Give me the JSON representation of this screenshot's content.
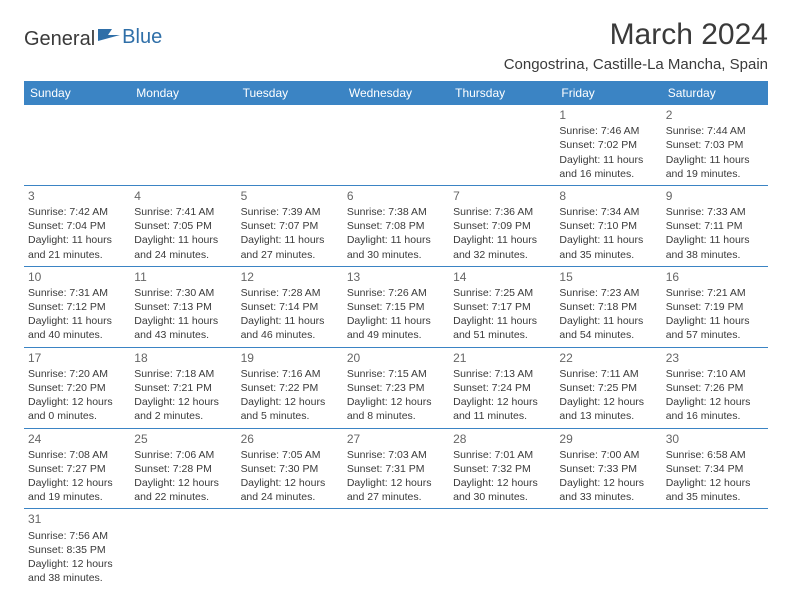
{
  "logo": {
    "text1": "General",
    "text2": "Blue"
  },
  "title": "March 2024",
  "location": "Congostrina, Castille-La Mancha, Spain",
  "colors": {
    "header_bg": "#3b84c4",
    "header_text": "#ffffff",
    "border": "#3b84c4",
    "text": "#3a3a3a",
    "daynum": "#666666",
    "logo_accent": "#2f6fa8"
  },
  "weekdays": [
    "Sunday",
    "Monday",
    "Tuesday",
    "Wednesday",
    "Thursday",
    "Friday",
    "Saturday"
  ],
  "weeks": [
    [
      null,
      null,
      null,
      null,
      null,
      {
        "n": "1",
        "sr": "Sunrise: 7:46 AM",
        "ss": "Sunset: 7:02 PM",
        "dl": "Daylight: 11 hours and 16 minutes."
      },
      {
        "n": "2",
        "sr": "Sunrise: 7:44 AM",
        "ss": "Sunset: 7:03 PM",
        "dl": "Daylight: 11 hours and 19 minutes."
      }
    ],
    [
      {
        "n": "3",
        "sr": "Sunrise: 7:42 AM",
        "ss": "Sunset: 7:04 PM",
        "dl": "Daylight: 11 hours and 21 minutes."
      },
      {
        "n": "4",
        "sr": "Sunrise: 7:41 AM",
        "ss": "Sunset: 7:05 PM",
        "dl": "Daylight: 11 hours and 24 minutes."
      },
      {
        "n": "5",
        "sr": "Sunrise: 7:39 AM",
        "ss": "Sunset: 7:07 PM",
        "dl": "Daylight: 11 hours and 27 minutes."
      },
      {
        "n": "6",
        "sr": "Sunrise: 7:38 AM",
        "ss": "Sunset: 7:08 PM",
        "dl": "Daylight: 11 hours and 30 minutes."
      },
      {
        "n": "7",
        "sr": "Sunrise: 7:36 AM",
        "ss": "Sunset: 7:09 PM",
        "dl": "Daylight: 11 hours and 32 minutes."
      },
      {
        "n": "8",
        "sr": "Sunrise: 7:34 AM",
        "ss": "Sunset: 7:10 PM",
        "dl": "Daylight: 11 hours and 35 minutes."
      },
      {
        "n": "9",
        "sr": "Sunrise: 7:33 AM",
        "ss": "Sunset: 7:11 PM",
        "dl": "Daylight: 11 hours and 38 minutes."
      }
    ],
    [
      {
        "n": "10",
        "sr": "Sunrise: 7:31 AM",
        "ss": "Sunset: 7:12 PM",
        "dl": "Daylight: 11 hours and 40 minutes."
      },
      {
        "n": "11",
        "sr": "Sunrise: 7:30 AM",
        "ss": "Sunset: 7:13 PM",
        "dl": "Daylight: 11 hours and 43 minutes."
      },
      {
        "n": "12",
        "sr": "Sunrise: 7:28 AM",
        "ss": "Sunset: 7:14 PM",
        "dl": "Daylight: 11 hours and 46 minutes."
      },
      {
        "n": "13",
        "sr": "Sunrise: 7:26 AM",
        "ss": "Sunset: 7:15 PM",
        "dl": "Daylight: 11 hours and 49 minutes."
      },
      {
        "n": "14",
        "sr": "Sunrise: 7:25 AM",
        "ss": "Sunset: 7:17 PM",
        "dl": "Daylight: 11 hours and 51 minutes."
      },
      {
        "n": "15",
        "sr": "Sunrise: 7:23 AM",
        "ss": "Sunset: 7:18 PM",
        "dl": "Daylight: 11 hours and 54 minutes."
      },
      {
        "n": "16",
        "sr": "Sunrise: 7:21 AM",
        "ss": "Sunset: 7:19 PM",
        "dl": "Daylight: 11 hours and 57 minutes."
      }
    ],
    [
      {
        "n": "17",
        "sr": "Sunrise: 7:20 AM",
        "ss": "Sunset: 7:20 PM",
        "dl": "Daylight: 12 hours and 0 minutes."
      },
      {
        "n": "18",
        "sr": "Sunrise: 7:18 AM",
        "ss": "Sunset: 7:21 PM",
        "dl": "Daylight: 12 hours and 2 minutes."
      },
      {
        "n": "19",
        "sr": "Sunrise: 7:16 AM",
        "ss": "Sunset: 7:22 PM",
        "dl": "Daylight: 12 hours and 5 minutes."
      },
      {
        "n": "20",
        "sr": "Sunrise: 7:15 AM",
        "ss": "Sunset: 7:23 PM",
        "dl": "Daylight: 12 hours and 8 minutes."
      },
      {
        "n": "21",
        "sr": "Sunrise: 7:13 AM",
        "ss": "Sunset: 7:24 PM",
        "dl": "Daylight: 12 hours and 11 minutes."
      },
      {
        "n": "22",
        "sr": "Sunrise: 7:11 AM",
        "ss": "Sunset: 7:25 PM",
        "dl": "Daylight: 12 hours and 13 minutes."
      },
      {
        "n": "23",
        "sr": "Sunrise: 7:10 AM",
        "ss": "Sunset: 7:26 PM",
        "dl": "Daylight: 12 hours and 16 minutes."
      }
    ],
    [
      {
        "n": "24",
        "sr": "Sunrise: 7:08 AM",
        "ss": "Sunset: 7:27 PM",
        "dl": "Daylight: 12 hours and 19 minutes."
      },
      {
        "n": "25",
        "sr": "Sunrise: 7:06 AM",
        "ss": "Sunset: 7:28 PM",
        "dl": "Daylight: 12 hours and 22 minutes."
      },
      {
        "n": "26",
        "sr": "Sunrise: 7:05 AM",
        "ss": "Sunset: 7:30 PM",
        "dl": "Daylight: 12 hours and 24 minutes."
      },
      {
        "n": "27",
        "sr": "Sunrise: 7:03 AM",
        "ss": "Sunset: 7:31 PM",
        "dl": "Daylight: 12 hours and 27 minutes."
      },
      {
        "n": "28",
        "sr": "Sunrise: 7:01 AM",
        "ss": "Sunset: 7:32 PM",
        "dl": "Daylight: 12 hours and 30 minutes."
      },
      {
        "n": "29",
        "sr": "Sunrise: 7:00 AM",
        "ss": "Sunset: 7:33 PM",
        "dl": "Daylight: 12 hours and 33 minutes."
      },
      {
        "n": "30",
        "sr": "Sunrise: 6:58 AM",
        "ss": "Sunset: 7:34 PM",
        "dl": "Daylight: 12 hours and 35 minutes."
      }
    ],
    [
      {
        "n": "31",
        "sr": "Sunrise: 7:56 AM",
        "ss": "Sunset: 8:35 PM",
        "dl": "Daylight: 12 hours and 38 minutes."
      },
      null,
      null,
      null,
      null,
      null,
      null
    ]
  ]
}
